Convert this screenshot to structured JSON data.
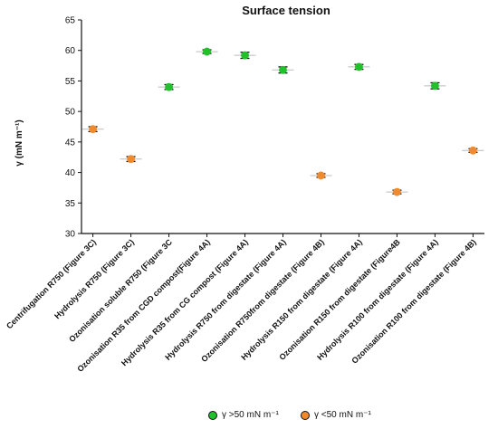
{
  "chart_data": {
    "type": "scatter",
    "title": "Surface tension",
    "ylabel": "γ (mN m⁻¹)",
    "xlabel": "",
    "ylim": [
      30,
      65
    ],
    "yticks": [
      30,
      35,
      40,
      45,
      50,
      55,
      60,
      65
    ],
    "grid": false,
    "categories": [
      "Centrifugation R750 (Figure 3C)",
      "Hydrolysis R750 (Figure 3C)",
      "Ozonisation soluble R750 (Figure 3C",
      "Ozonisation R35 from CGD compost(Figure 4A)",
      "Hydrolysis R35 from CG compost (Figure 4A)",
      "Hydrolysis R750 from digestate (Figure 4A)",
      "Ozonisation R750from digestate (Figure 4B)",
      "Hydrolysis R150 from digestate (Figure 4A)",
      "Ozonisation R150 from digestate (Figure4B",
      "Hydrolysis R100 from digestate (Figure 4A)",
      "Ozonisation R100 from digestate (Figure 4B)"
    ],
    "values": [
      47.1,
      42.2,
      54.0,
      59.8,
      59.2,
      56.8,
      39.5,
      57.3,
      36.8,
      54.2,
      43.6
    ],
    "errors": [
      0.4,
      0.4,
      0.4,
      0.3,
      0.5,
      0.5,
      0.3,
      0.4,
      0.3,
      0.5,
      0.3
    ],
    "group_above": "green",
    "legend_placement": "bottom",
    "legend": [
      {
        "label": "γ >50 mN m⁻¹",
        "color": "#22c02a"
      },
      {
        "label": "γ <50 mN m⁻¹",
        "color": "#f08a2e"
      }
    ],
    "colors": {
      "green": "#22c02a",
      "orange": "#f08a2e",
      "axis": "#111111"
    }
  }
}
